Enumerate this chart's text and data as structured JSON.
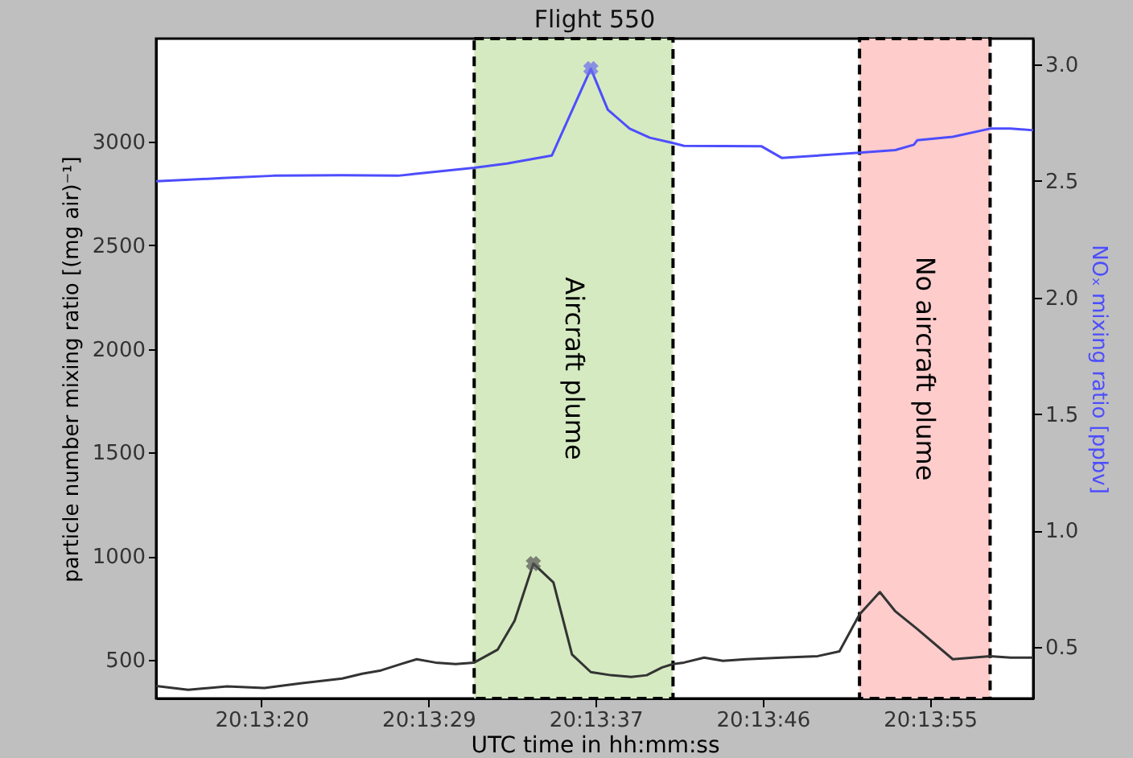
{
  "chart_data": {
    "type": "line",
    "title": "Flight 550",
    "xlabel": "UTC time in hh:mm:ss",
    "ylabel": "particle number mixing ratio [(mg air)⁻¹]",
    "y2label": "NOₓ mixing ratio [ppbv]",
    "xlim": [
      20.220756,
      20.23335
    ],
    "xticks": [
      {
        "value": 20.222267,
        "label": "20:13:20"
      },
      {
        "value": 20.224667,
        "label": "20:13:29"
      },
      {
        "value": 20.227067,
        "label": "20:13:37"
      },
      {
        "value": 20.229467,
        "label": "20:13:46"
      },
      {
        "value": 20.231867,
        "label": "20:13:55"
      }
    ],
    "ylim": [
      315,
      3495
    ],
    "yticks": [
      500,
      1000,
      1500,
      2000,
      2500,
      3000
    ],
    "y2lim": [
      0.28,
      3.11
    ],
    "y2ticks": [
      0.5,
      {
        "value": 1,
        "label": "1.0"
      },
      1.5,
      {
        "value": 2,
        "label": "2.0"
      },
      2.5,
      {
        "value": 3,
        "label": "3.0"
      }
    ],
    "series": [
      {
        "color": "#333333",
        "x": [
          20.220756,
          20.221217,
          20.221775,
          20.222311,
          20.222825,
          20.223428,
          20.223717,
          20.223984,
          20.224275,
          20.224498,
          20.224767,
          20.225056,
          20.225323,
          20.225659,
          20.225903,
          20.226173,
          20.226461,
          20.226728,
          20.226998,
          20.227286,
          20.227578,
          20.2278,
          20.228023,
          20.228178,
          20.228336,
          20.228625,
          20.228895,
          20.229228,
          20.229742,
          20.230256,
          20.230567,
          20.230856,
          20.231148,
          20.23137,
          20.231684,
          20.232195,
          20.232731,
          20.233023,
          20.23335
        ],
        "values": [
          375,
          357,
          373,
          365,
          388,
          411,
          434,
          450,
          481,
          504,
          488,
          481,
          488,
          550,
          689,
          965,
          874,
          527,
          442,
          427,
          419,
          427,
          465,
          481,
          488,
          512,
          496,
          504,
          512,
          519,
          542,
          720,
          828,
          735,
          650,
          504,
          519,
          512,
          512
        ]
      },
      {
        "type": "scatter",
        "marker": "cross",
        "color": "#555555",
        "x": [
          20.226173
        ],
        "values": [
          965
        ]
      },
      {
        "axis": "y2",
        "color": "#4d4dff",
        "x": [
          20.220756,
          20.221709,
          20.222445,
          20.223428,
          20.224231,
          20.224453,
          20.225323,
          20.225792,
          20.226439,
          20.226998,
          20.227242,
          20.227556,
          20.227845,
          20.228178,
          20.228336,
          20.22945,
          20.229742,
          20.230856,
          20.23137,
          20.231636,
          20.231684,
          20.232195,
          20.232731,
          20.233023,
          20.23335
        ],
        "values": [
          2.498,
          2.512,
          2.522,
          2.524,
          2.522,
          2.529,
          2.556,
          2.574,
          2.609,
          2.981,
          2.805,
          2.724,
          2.685,
          2.662,
          2.65,
          2.648,
          2.598,
          2.621,
          2.632,
          2.655,
          2.674,
          2.689,
          2.724,
          2.724,
          2.717
        ]
      },
      {
        "type": "scatter",
        "marker": "cross",
        "axis": "y2",
        "color": "#6a6aee",
        "x": [
          20.226998
        ],
        "values": [
          2.981
        ]
      }
    ],
    "bands": [
      {
        "axis": "x",
        "from": 20.225323,
        "to": 20.228178,
        "label": "Aircraft plume",
        "color": "#d5eac0"
      },
      {
        "axis": "x",
        "from": 20.230856,
        "to": 20.232731,
        "label": "No aircraft plume",
        "color": "#ffcccc"
      }
    ]
  }
}
